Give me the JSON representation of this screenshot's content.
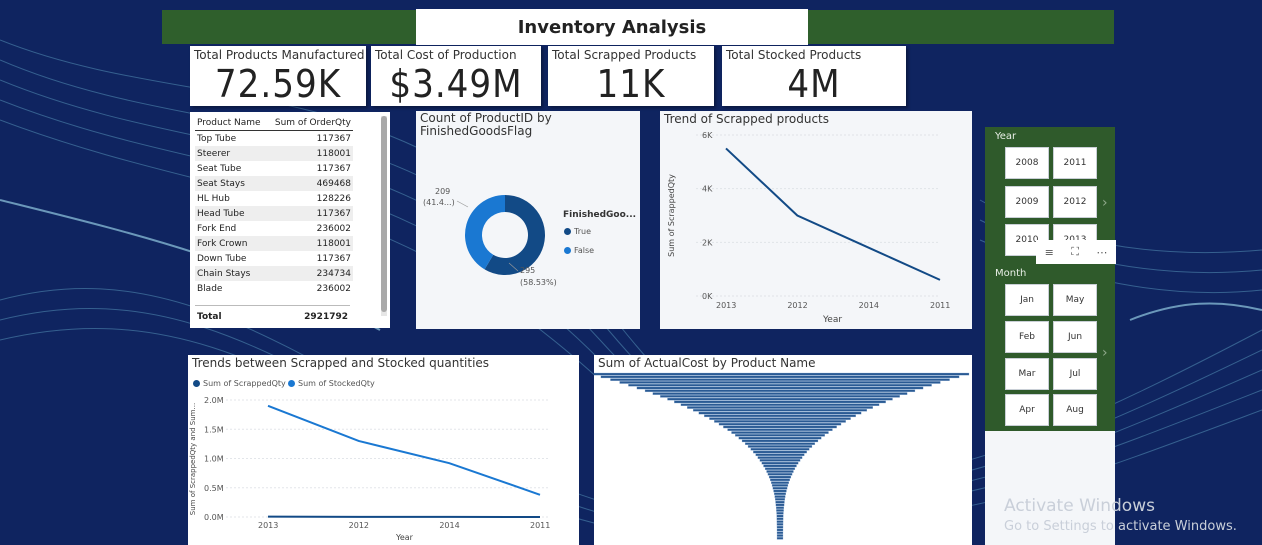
{
  "title": "Inventory Analysis",
  "kpis": [
    {
      "label": "Total Products Manufactured",
      "value": "72.59K"
    },
    {
      "label": "Total Cost of Production",
      "value": "$3.49M"
    },
    {
      "label": "Total Scrapped Products",
      "value": "11K"
    },
    {
      "label": "Total Stocked Products",
      "value": "4M"
    }
  ],
  "product_table": {
    "headers": [
      "Product Name",
      "Sum of OrderQty"
    ],
    "rows": [
      [
        "Top Tube",
        "117367"
      ],
      [
        "Steerer",
        "118001"
      ],
      [
        "Seat Tube",
        "117367"
      ],
      [
        "Seat Stays",
        "469468"
      ],
      [
        "HL Hub",
        "128226"
      ],
      [
        "Head Tube",
        "117367"
      ],
      [
        "Fork End",
        "236002"
      ],
      [
        "Fork Crown",
        "118001"
      ],
      [
        "Down Tube",
        "117367"
      ],
      [
        "Chain Stays",
        "234734"
      ],
      [
        "Blade",
        "236002"
      ]
    ],
    "total_label": "Total",
    "total_value": "2921792"
  },
  "donut": {
    "title_line1": "Count of ProductID by",
    "title_line2": "FinishedGoodsFlag",
    "legend_title": "FinishedGoo...",
    "label_false_1": "209",
    "label_false_2": "(41.4...)",
    "label_true_1": "295",
    "label_true_2": "(58.53%)",
    "legend": [
      "True",
      "False"
    ]
  },
  "trend_scrapped": {
    "title": "Trend of Scrapped products",
    "ylabel": "Sum of ScrappedQty",
    "xlabel": "Year",
    "yticks": [
      "6K",
      "4K",
      "2K",
      "0K"
    ],
    "xticks": [
      "2013",
      "2012",
      "2014",
      "2011"
    ]
  },
  "trend_both": {
    "title": "Trends between Scrapped and Stocked quantities",
    "legend": [
      "Sum of ScrappedQty",
      "Sum of StockedQty"
    ],
    "ylabel": "Sum of ScrappedQty and Sum...",
    "xlabel": "Year",
    "yticks": [
      "2.0M",
      "1.5M",
      "1.0M",
      "0.5M",
      "0.0M"
    ],
    "xticks": [
      "2013",
      "2012",
      "2014",
      "2011"
    ]
  },
  "actualcost": {
    "title": "Sum of ActualCost by Product Name"
  },
  "slicer_year": {
    "label": "Year",
    "buttons": [
      "2008",
      "2011",
      "2009",
      "2012",
      "2010",
      "2013"
    ]
  },
  "slicer_month": {
    "label": "Month",
    "buttons": [
      "Jan",
      "May",
      "Feb",
      "Jun",
      "Mar",
      "Jul",
      "Apr",
      "Aug"
    ]
  },
  "watermark": {
    "line1": "Activate Windows",
    "line2": "Go to Settings to activate Windows."
  },
  "colors": {
    "background": "#0f2460",
    "header": "#2f5f2c",
    "series_dark": "#124a86",
    "series_light": "#1a78d2"
  },
  "chart_data": [
    {
      "type": "line",
      "title": "Trend of Scrapped products",
      "xlabel": "Year",
      "ylabel": "Sum of ScrappedQty",
      "categories": [
        "2013",
        "2012",
        "2014",
        "2011"
      ],
      "series": [
        {
          "name": "Sum of ScrappedQty",
          "values": [
            5500,
            3000,
            1800,
            600
          ]
        }
      ],
      "ylim": [
        0,
        6000
      ]
    },
    {
      "type": "line",
      "title": "Trends between Scrapped and Stocked quantities",
      "xlabel": "Year",
      "categories": [
        "2013",
        "2012",
        "2014",
        "2011"
      ],
      "series": [
        {
          "name": "Sum of ScrappedQty",
          "values": [
            5500,
            3000,
            1800,
            600
          ]
        },
        {
          "name": "Sum of StockedQty",
          "values": [
            1900000,
            1300000,
            920000,
            380000
          ]
        }
      ],
      "ylim": [
        0,
        2000000
      ]
    },
    {
      "type": "pie",
      "title": "Count of ProductID by FinishedGoodsFlag",
      "categories": [
        "True",
        "False"
      ],
      "values": [
        295,
        209
      ]
    }
  ]
}
